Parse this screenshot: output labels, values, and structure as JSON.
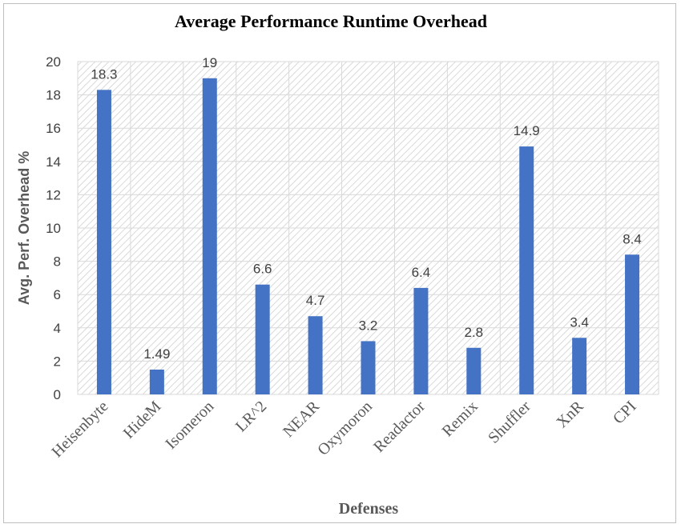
{
  "chart_data": {
    "type": "bar",
    "title": "Average Performance Runtime Overhead",
    "xlabel": "Defenses",
    "ylabel": "Avg. Perf. Overhead %",
    "categories": [
      "Heisenbyte",
      "HideM",
      "Isomeron",
      "LR^2",
      "NEAR",
      "Oxymoron",
      "Readactor",
      "Remix",
      "Shuffler",
      "XnR",
      "CPI"
    ],
    "values": [
      18.3,
      1.49,
      19,
      6.6,
      4.7,
      3.2,
      6.4,
      2.8,
      14.9,
      3.4,
      8.4
    ],
    "data_labels": [
      "18.3",
      "1.49",
      "19",
      "6.6",
      "4.7",
      "3.2",
      "6.4",
      "2.8",
      "14.9",
      "3.4",
      "8.4"
    ],
    "ylim": [
      0,
      20
    ],
    "yticks": [
      0,
      2,
      4,
      6,
      8,
      10,
      12,
      14,
      16,
      18,
      20
    ],
    "grid": true,
    "bar_color": "#4472C4",
    "legend": "none"
  }
}
